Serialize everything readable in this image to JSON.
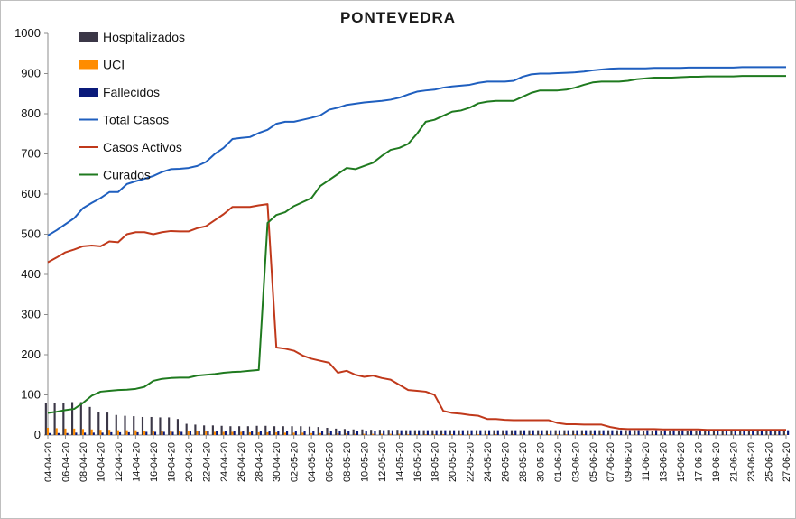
{
  "chart_data": {
    "type": "line",
    "title": "PONTEVEDRA",
    "xlabel": "",
    "ylabel": "",
    "ylim": [
      0,
      1000
    ],
    "yticks": [
      0,
      100,
      200,
      300,
      400,
      500,
      600,
      700,
      800,
      900,
      1000
    ],
    "grid": false,
    "legend_position": "top-left",
    "x_start_date": "2020-04-04",
    "x_end_date": "2020-06-27",
    "x_tick_labels": [
      "04-04-20",
      "06-04-20",
      "08-04-20",
      "10-04-20",
      "12-04-20",
      "14-04-20",
      "16-04-20",
      "18-04-20",
      "20-04-20",
      "22-04-20",
      "24-04-20",
      "26-04-20",
      "28-04-20",
      "30-04-20",
      "02-05-20",
      "04-05-20",
      "06-05-20",
      "08-05-20",
      "10-05-20",
      "12-05-20",
      "14-05-20",
      "16-05-20",
      "18-05-20",
      "20-05-20",
      "22-05-20",
      "24-05-20",
      "26-05-20",
      "28-05-20",
      "30-05-20",
      "01-06-20",
      "03-06-20",
      "05-06-20",
      "07-06-20",
      "09-06-20",
      "11-06-20",
      "13-06-20",
      "15-06-20",
      "17-06-20",
      "19-06-20",
      "21-06-20",
      "23-06-20",
      "25-06-20",
      "27-06-20"
    ],
    "legend": [
      "Hospitalizados",
      "UCI",
      "Fallecidos",
      "Total Casos",
      "Casos Activos",
      "Curados"
    ],
    "series": [
      {
        "name": "Hospitalizados",
        "kind": "bar",
        "color": "#3b3747",
        "values": [
          80,
          80,
          80,
          82,
          82,
          70,
          58,
          56,
          50,
          48,
          47,
          45,
          45,
          44,
          44,
          40,
          28,
          26,
          24,
          24,
          23,
          22,
          22,
          22,
          23,
          23,
          22,
          22,
          22,
          22,
          21,
          20,
          18,
          16,
          15,
          14,
          14,
          13,
          13,
          13,
          13,
          12,
          12,
          12,
          12,
          12,
          12,
          12,
          12,
          12,
          12,
          12,
          12,
          12,
          12,
          12,
          12,
          12,
          12,
          12,
          12,
          12,
          12,
          12,
          12,
          12,
          12,
          12,
          11,
          11,
          11,
          11,
          11,
          11,
          11,
          11,
          11,
          11,
          11,
          11,
          11,
          11,
          11,
          11,
          11
        ]
      },
      {
        "name": "UCI",
        "kind": "bar",
        "color": "#ff8c00",
        "values": [
          18,
          17,
          16,
          16,
          15,
          14,
          13,
          13,
          12,
          12,
          12,
          11,
          11,
          11,
          10,
          10,
          9,
          9,
          9,
          8,
          8,
          8,
          8,
          7,
          7,
          7,
          7,
          6,
          6,
          6,
          5,
          5,
          4,
          4,
          4,
          3,
          3,
          3,
          3,
          3,
          3,
          2,
          2,
          2,
          2,
          2,
          2,
          2,
          2,
          2,
          2,
          2,
          2,
          2,
          2,
          2,
          2,
          2,
          2,
          2,
          2,
          2,
          2,
          2,
          1,
          1,
          1,
          1,
          1,
          1,
          1,
          1,
          1,
          1,
          1,
          1,
          1,
          1,
          1,
          1,
          1,
          1,
          1,
          1,
          1
        ]
      },
      {
        "name": "Fallecidos",
        "kind": "bar",
        "color": "#0a1a7a",
        "values": [
          5,
          5,
          5,
          6,
          6,
          6,
          6,
          7,
          7,
          7,
          7,
          8,
          8,
          8,
          8,
          8,
          9,
          9,
          9,
          9,
          9,
          10,
          10,
          10,
          10,
          10,
          10,
          10,
          11,
          11,
          11,
          11,
          11,
          11,
          11,
          11,
          11,
          11,
          12,
          12,
          12,
          12,
          12,
          12,
          12,
          12,
          12,
          12,
          12,
          12,
          12,
          12,
          12,
          12,
          12,
          12,
          12,
          12,
          12,
          12,
          12,
          12,
          12,
          12,
          12,
          12,
          12,
          12,
          12,
          12,
          12,
          12,
          12,
          12,
          12,
          12,
          12,
          12,
          12,
          12,
          12,
          12,
          12,
          12,
          12
        ]
      },
      {
        "name": "Total Casos",
        "kind": "line",
        "color": "#1f5fbf",
        "values": [
          497,
          510,
          525,
          540,
          565,
          578,
          590,
          605,
          605,
          625,
          632,
          638,
          645,
          655,
          662,
          663,
          665,
          670,
          680,
          700,
          715,
          737,
          740,
          742,
          752,
          760,
          775,
          780,
          780,
          785,
          790,
          796,
          810,
          815,
          822,
          825,
          828,
          830,
          832,
          835,
          840,
          848,
          855,
          858,
          860,
          865,
          868,
          870,
          872,
          877,
          880,
          880,
          880,
          882,
          892,
          898,
          900,
          900,
          901,
          902,
          903,
          905,
          908,
          910,
          912,
          913,
          913,
          913,
          913,
          914,
          914,
          914,
          914,
          915,
          915,
          915,
          915,
          915,
          915,
          916,
          916,
          916,
          916,
          916,
          916
        ]
      },
      {
        "name": "Casos Activos",
        "kind": "line",
        "color": "#c0391b",
        "values": [
          430,
          442,
          455,
          462,
          470,
          472,
          470,
          482,
          480,
          500,
          505,
          505,
          500,
          505,
          508,
          507,
          507,
          515,
          520,
          535,
          550,
          568,
          568,
          568,
          572,
          575,
          218,
          215,
          210,
          198,
          190,
          185,
          180,
          155,
          160,
          150,
          145,
          148,
          142,
          138,
          125,
          112,
          110,
          108,
          100,
          60,
          55,
          53,
          50,
          48,
          40,
          40,
          38,
          37,
          37,
          37,
          37,
          37,
          30,
          27,
          27,
          26,
          26,
          26,
          20,
          16,
          15,
          15,
          15,
          15,
          14,
          14,
          14,
          14,
          14,
          13,
          13,
          13,
          13,
          13,
          13,
          13,
          13,
          13,
          13
        ]
      },
      {
        "name": "Curados",
        "kind": "line",
        "color": "#1f7a1f",
        "values": [
          55,
          58,
          62,
          65,
          80,
          98,
          108,
          110,
          112,
          113,
          115,
          120,
          135,
          140,
          142,
          143,
          143,
          148,
          150,
          152,
          155,
          157,
          158,
          160,
          162,
          528,
          548,
          555,
          570,
          580,
          590,
          620,
          635,
          650,
          665,
          662,
          670,
          678,
          695,
          710,
          715,
          725,
          750,
          780,
          785,
          795,
          805,
          808,
          815,
          826,
          830,
          832,
          832,
          832,
          842,
          852,
          858,
          858,
          858,
          860,
          865,
          872,
          878,
          880,
          880,
          880,
          882,
          886,
          888,
          890,
          890,
          890,
          891,
          892,
          892,
          893,
          893,
          893,
          893,
          894,
          894,
          894,
          894,
          894,
          894
        ]
      }
    ]
  }
}
